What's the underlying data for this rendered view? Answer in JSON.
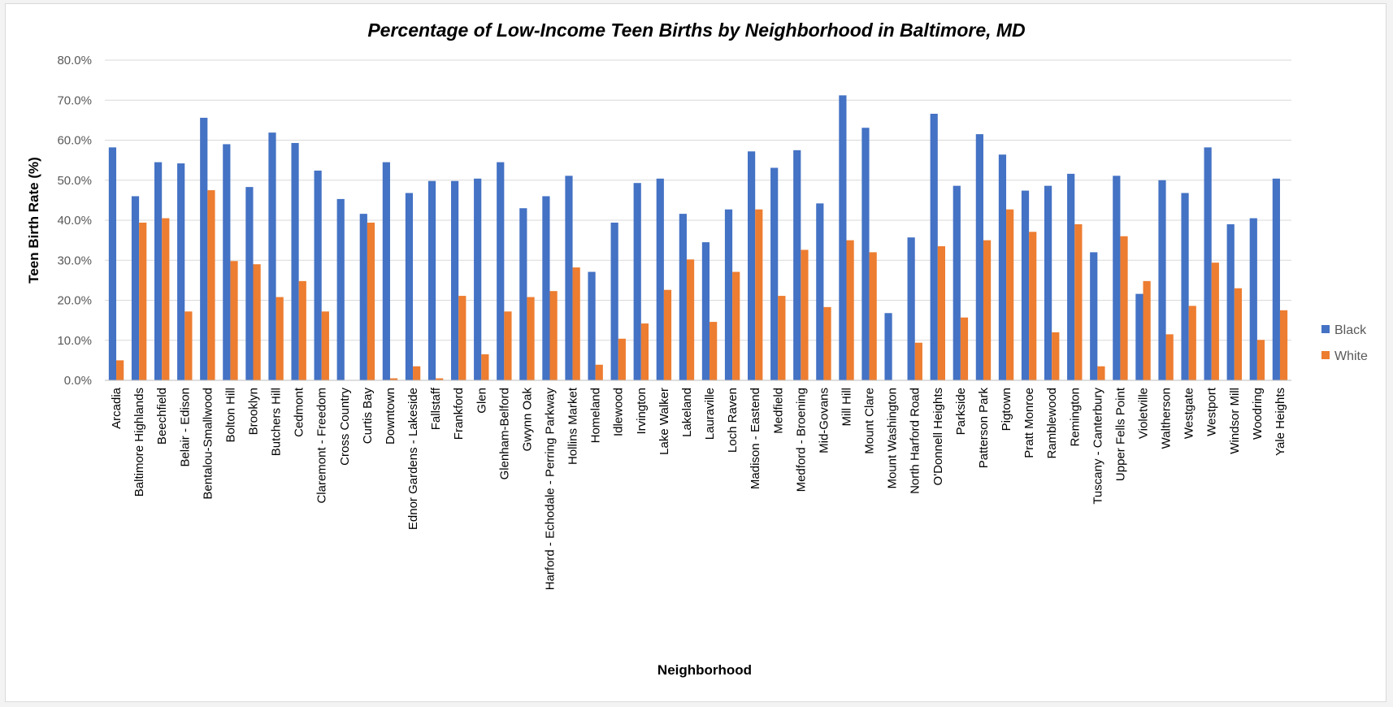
{
  "chart_data": {
    "type": "bar",
    "title": "Percentage of  Low-Income Teen Births by Neighborhood in Baltimore, MD",
    "xlabel": "Neighborhood",
    "ylabel": "Teen Birth Rate (%)",
    "ylim": [
      0,
      80
    ],
    "yticks": [
      "0.0%",
      "10.0%",
      "20.0%",
      "30.0%",
      "40.0%",
      "50.0%",
      "60.0%",
      "70.0%",
      "80.0%"
    ],
    "grid": true,
    "legend_position": "right",
    "categories": [
      "Arcadia",
      "Baltimore Highlands",
      "Beechfield",
      "Belair - Edison",
      "Bentalou-Smallwood",
      "Bolton Hill",
      "Brooklyn",
      "Butchers Hill",
      "Cedmont",
      "Claremont - Freedom",
      "Cross Country",
      "Curtis Bay",
      "Downtown",
      "Ednor Gardens - Lakeside",
      "Fallstaff",
      "Frankford",
      "Glen",
      "Glenham-Belford",
      "Gwynn Oak",
      "Harford - Echodale - Perring Parkway",
      "Hollins Market",
      "Homeland",
      "Idlewood",
      "Irvington",
      "Lake Walker",
      "Lakeland",
      "Lauraville",
      "Loch Raven",
      "Madison - Eastend",
      "Medfield",
      "Medford - Broening",
      "Mid-Govans",
      "Mill Hill",
      "Mount Clare",
      "Mount Washington",
      "North Harford Road",
      "O'Donnell Heights",
      "Parkside",
      "Patterson Park",
      "Pigtown",
      "Pratt Monroe",
      "Ramblewood",
      "Remington",
      "Tuscany - Canterbury",
      "Upper Fells Point",
      "Violetville",
      "Waltherson",
      "Westgate",
      "Westport",
      "Windsor Mill",
      "Woodring",
      "Yale Heights"
    ],
    "series": [
      {
        "name": "Black",
        "color": "#4472c4",
        "values": [
          58.2,
          46.0,
          54.5,
          54.2,
          65.6,
          59.0,
          48.3,
          61.9,
          59.3,
          52.4,
          45.3,
          41.6,
          54.5,
          46.8,
          49.8,
          49.8,
          50.4,
          54.5,
          43.0,
          46.0,
          51.1,
          27.1,
          39.4,
          49.3,
          50.4,
          41.6,
          34.5,
          42.7,
          57.2,
          53.1,
          57.5,
          44.2,
          71.2,
          63.1,
          16.8,
          35.7,
          66.6,
          48.6,
          61.5,
          56.4,
          47.4,
          48.6,
          51.6,
          32.0,
          51.1,
          21.6,
          50.0,
          46.8,
          58.2,
          39.0,
          40.5,
          50.4
        ]
      },
      {
        "name": "White",
        "color": "#ed7d31",
        "values": [
          5.0,
          39.4,
          40.5,
          17.2,
          47.5,
          29.8,
          29.0,
          20.8,
          24.8,
          17.2,
          0,
          39.4,
          0.5,
          3.5,
          0.5,
          21.1,
          6.5,
          17.2,
          20.8,
          22.3,
          28.2,
          3.9,
          10.4,
          14.2,
          22.6,
          30.2,
          14.6,
          27.1,
          42.7,
          21.1,
          32.6,
          18.3,
          35.0,
          32.0,
          0,
          9.4,
          33.5,
          15.7,
          35.0,
          42.7,
          37.1,
          12.0,
          39.0,
          3.5,
          36.0,
          24.8,
          11.5,
          18.6,
          29.4,
          23.0,
          10.1,
          17.5
        ]
      }
    ]
  }
}
